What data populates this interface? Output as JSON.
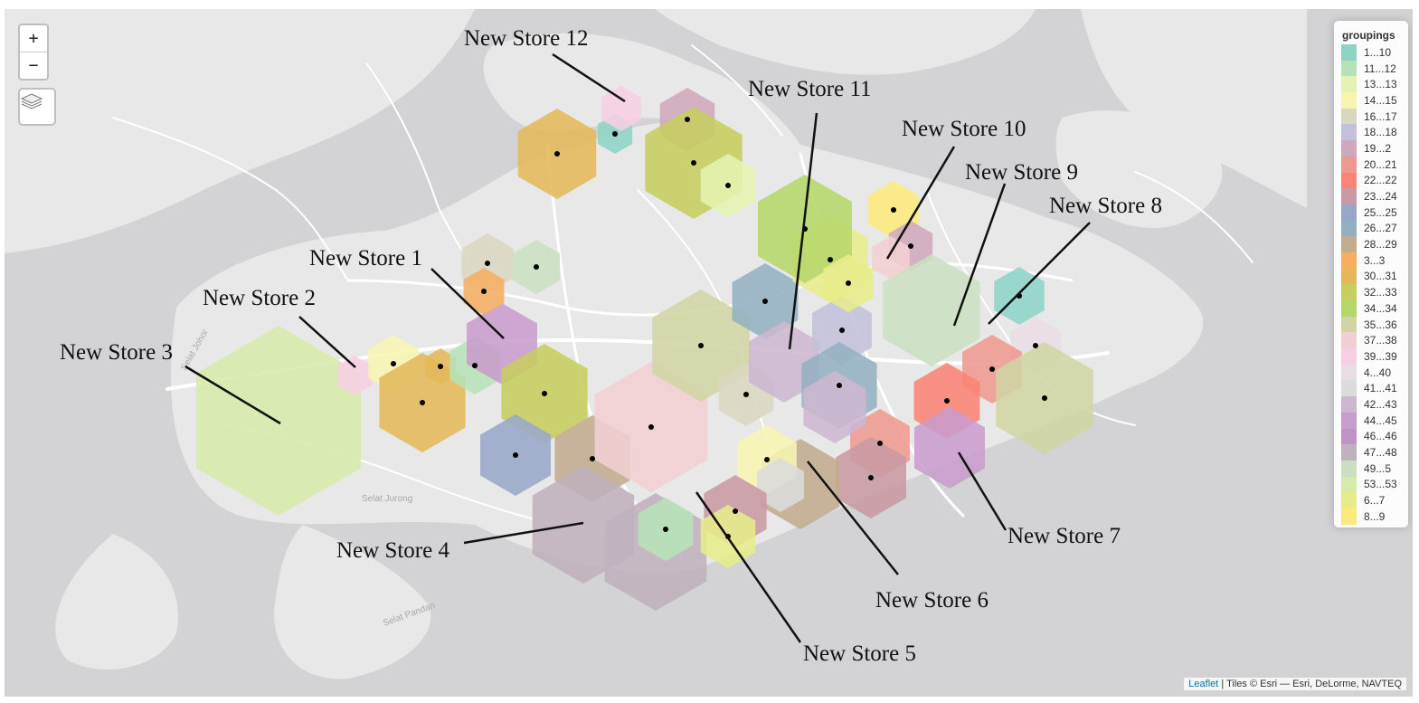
{
  "map": {
    "zoom_in": "+",
    "zoom_out": "−",
    "place_labels": [
      "Selat Jurong",
      "Selat Pandan",
      "Selat Johor"
    ]
  },
  "legend": {
    "title": "groupings",
    "items": [
      {
        "label": "1...10",
        "color": "#8dd3c7"
      },
      {
        "label": "11...12",
        "color": "#b6e2b8"
      },
      {
        "label": "13...13",
        "color": "#e4f3b1"
      },
      {
        "label": "14...15",
        "color": "#f7f5b0"
      },
      {
        "label": "16...17",
        "color": "#d9d7c1"
      },
      {
        "label": "18...18",
        "color": "#c3c0d9"
      },
      {
        "label": "19...2",
        "color": "#cfa8bd"
      },
      {
        "label": "20...21",
        "color": "#ee9890"
      },
      {
        "label": "22...22",
        "color": "#f98474"
      },
      {
        "label": "23...24",
        "color": "#c99aa3"
      },
      {
        "label": "25...25",
        "color": "#98a7c8"
      },
      {
        "label": "26...27",
        "color": "#93b0c2"
      },
      {
        "label": "28...29",
        "color": "#c2ab8e"
      },
      {
        "label": "3...3",
        "color": "#f5ae62"
      },
      {
        "label": "30...31",
        "color": "#e4b85a"
      },
      {
        "label": "32...33",
        "color": "#c7cd5f"
      },
      {
        "label": "34...34",
        "color": "#b5d76a"
      },
      {
        "label": "35...36",
        "color": "#d0d5a3"
      },
      {
        "label": "37...38",
        "color": "#f1cfd3"
      },
      {
        "label": "39...39",
        "color": "#f6cfe4"
      },
      {
        "label": "4...40",
        "color": "#e8dde2"
      },
      {
        "label": "41...41",
        "color": "#dcdcdc"
      },
      {
        "label": "42...43",
        "color": "#cdb6d0"
      },
      {
        "label": "44...45",
        "color": "#c89ccd"
      },
      {
        "label": "46...46",
        "color": "#bf93c5"
      },
      {
        "label": "47...48",
        "color": "#bfb1bd"
      },
      {
        "label": "49...5",
        "color": "#cbdfc2"
      },
      {
        "label": "53...53",
        "color": "#d6ebaa"
      },
      {
        "label": "6...7",
        "color": "#e7ec8a"
      },
      {
        "label": "8...9",
        "color": "#fde97c"
      }
    ]
  },
  "stores": [
    {
      "label": "New Store 1"
    },
    {
      "label": "New Store 2"
    },
    {
      "label": "New Store 3"
    },
    {
      "label": "New Store 4"
    },
    {
      "label": "New Store 5"
    },
    {
      "label": "New Store 6"
    },
    {
      "label": "New Store 7"
    },
    {
      "label": "New Store 8"
    },
    {
      "label": "New Store 9"
    },
    {
      "label": "New Store 10"
    },
    {
      "label": "New Store 11"
    },
    {
      "label": "New Store 12"
    }
  ],
  "attribution": {
    "link": "Leaflet",
    "text": " | Tiles © Esri — Esri, DeLorme, NAVTEQ"
  }
}
